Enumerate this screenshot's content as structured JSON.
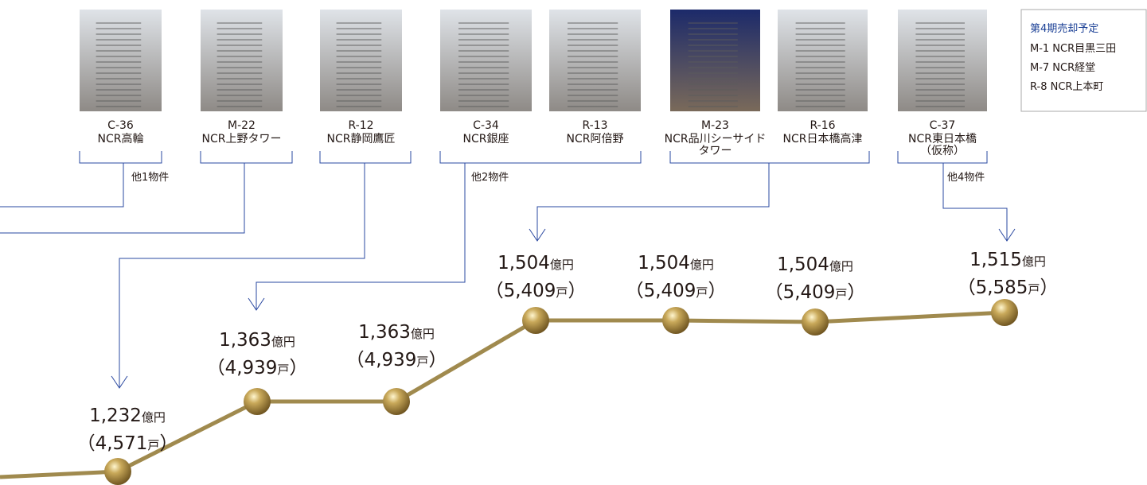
{
  "properties": [
    {
      "code": "C-36",
      "name": [
        "NCR高輪"
      ]
    },
    {
      "code": "M-22",
      "name": [
        "NCR上野タワー"
      ]
    },
    {
      "code": "R-12",
      "name": [
        "NCR静岡鷹匠"
      ]
    },
    {
      "code": "C-34",
      "name": [
        "NCR銀座"
      ]
    },
    {
      "code": "R-13",
      "name": [
        "NCR阿倍野"
      ]
    },
    {
      "code": "M-23",
      "name": [
        "NCR品川シーサイド",
        "タワー"
      ]
    },
    {
      "code": "R-16",
      "name": [
        "NCR日本橋高津"
      ]
    },
    {
      "code": "C-37",
      "name": [
        "NCR東日本橋",
        "（仮称）"
      ]
    }
  ],
  "others": [
    "他1物件",
    "他2物件",
    "他4物件"
  ],
  "points": [
    {
      "amount": "1,232",
      "count": "4,571"
    },
    {
      "amount": "1,363",
      "count": "4,939"
    },
    {
      "amount": "1,363",
      "count": "4,939"
    },
    {
      "amount": "1,504",
      "count": "5,409"
    },
    {
      "amount": "1,504",
      "count": "5,409"
    },
    {
      "amount": "1,504",
      "count": "5,409"
    },
    {
      "amount": "1,515",
      "count": "5,585"
    }
  ],
  "amount_unit": "億円",
  "count_unit": "戸",
  "open": "（",
  "close": "）",
  "legend": {
    "title": "第4期売却予定",
    "items": [
      "M-1 NCR目黒三田",
      "M-7 NCR経堂",
      "R-8 NCR上本町"
    ]
  }
}
